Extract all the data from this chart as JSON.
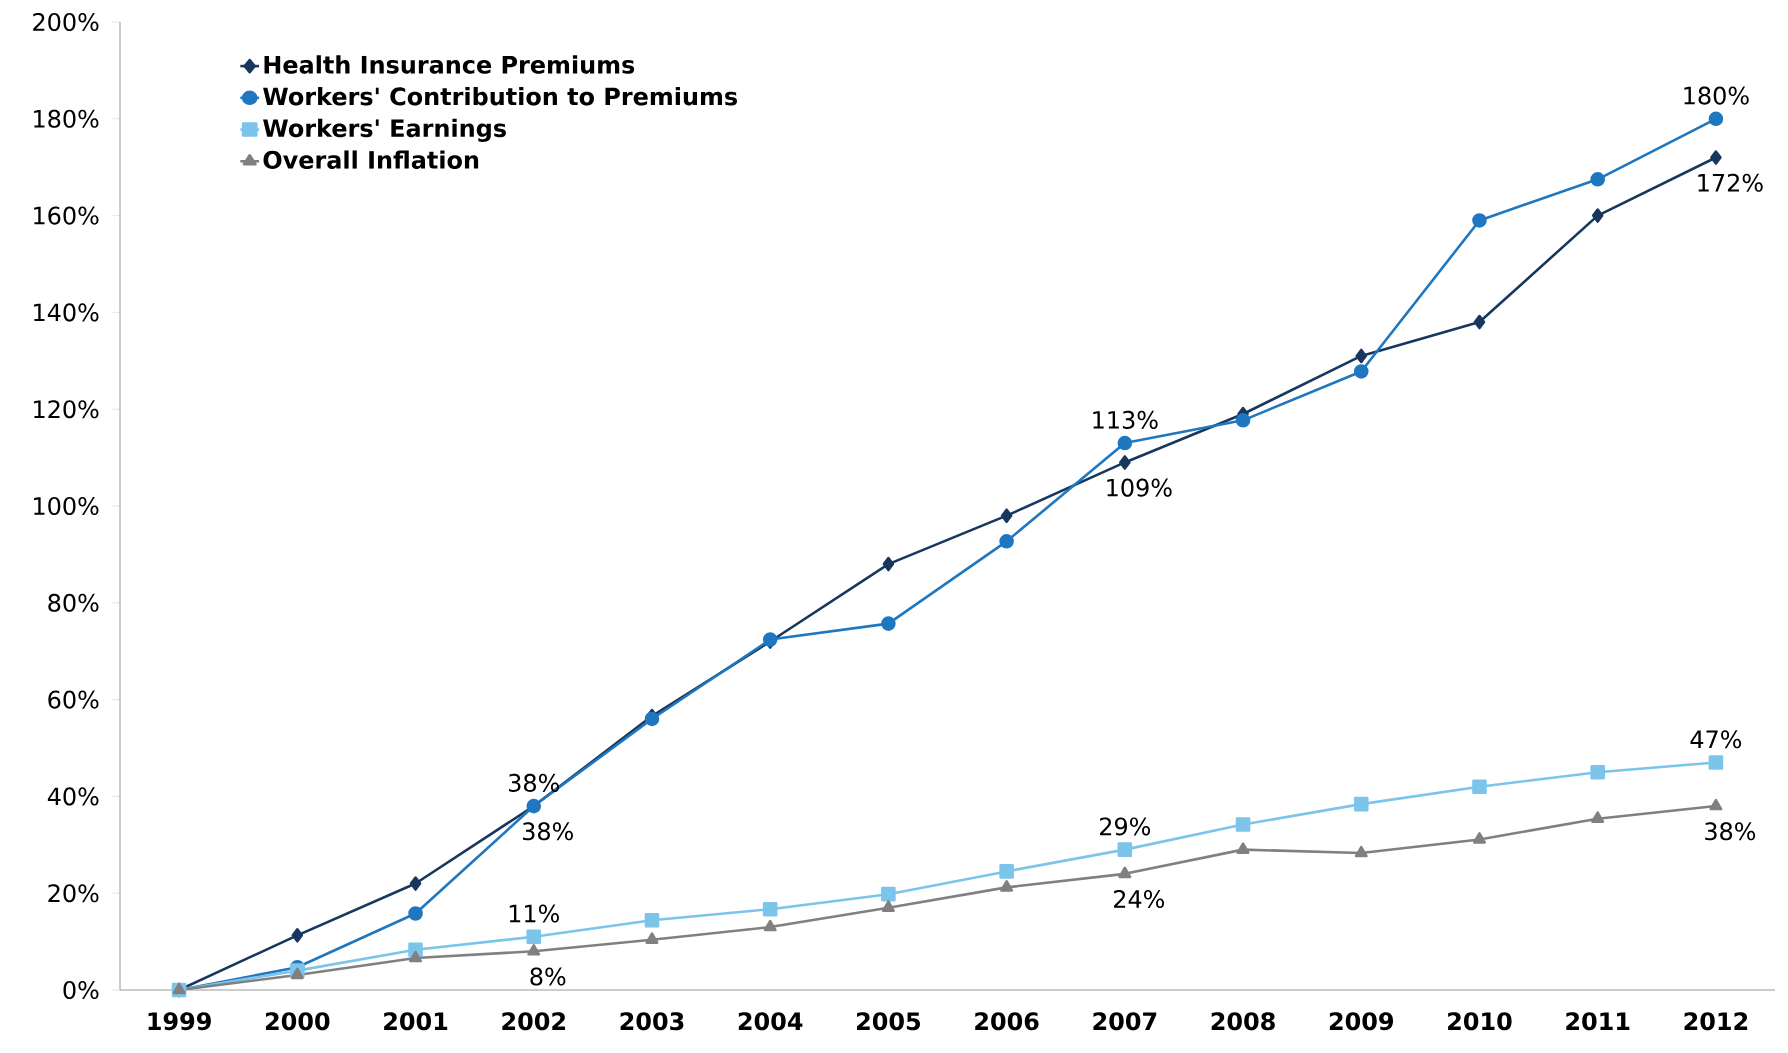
{
  "chart_data": {
    "type": "line",
    "categories": [
      "1999",
      "2000",
      "2001",
      "2002",
      "2003",
      "2004",
      "2005",
      "2006",
      "2007",
      "2008",
      "2009",
      "2010",
      "2011",
      "2012"
    ],
    "series": [
      {
        "name": "Health Insurance Premiums",
        "color": "#17375e",
        "marker": "diamond",
        "values": [
          0,
          11.3,
          22,
          38,
          56.6,
          72,
          88,
          98,
          109,
          119,
          131,
          138,
          160,
          172
        ],
        "value_labels": [
          null,
          null,
          null,
          "38%",
          null,
          null,
          null,
          null,
          "109%",
          null,
          null,
          null,
          null,
          "172%"
        ]
      },
      {
        "name": "Workers' Contribution to Premiums",
        "color": "#1f77c0",
        "marker": "circle",
        "values": [
          0,
          4.7,
          15.8,
          38,
          56,
          72.4,
          75.7,
          92.7,
          113,
          117.7,
          127.8,
          159,
          167.5,
          180
        ],
        "value_labels": [
          null,
          null,
          null,
          "38%",
          null,
          null,
          null,
          null,
          "113%",
          null,
          null,
          null,
          null,
          "180%"
        ]
      },
      {
        "name": "Workers' Earnings",
        "color": "#7cc4ea",
        "marker": "square",
        "values": [
          0,
          4,
          8.3,
          11,
          14.4,
          16.7,
          19.8,
          24.5,
          29,
          34.2,
          38.4,
          42,
          45,
          47
        ],
        "value_labels": [
          null,
          null,
          null,
          "11%",
          null,
          null,
          null,
          null,
          "29%",
          null,
          null,
          null,
          null,
          "47%"
        ]
      },
      {
        "name": "Overall Inflation",
        "color": "#808080",
        "marker": "triangle",
        "values": [
          0,
          3.1,
          6.6,
          8,
          10.4,
          13,
          17,
          21.2,
          24,
          29,
          28.3,
          31.1,
          35.4,
          38
        ],
        "value_labels": [
          null,
          null,
          null,
          "8%",
          null,
          null,
          null,
          null,
          "24%",
          null,
          null,
          null,
          null,
          "38%"
        ]
      }
    ],
    "ylim": [
      0,
      200
    ],
    "yticks": [
      {
        "value": 0,
        "label": "0%"
      },
      {
        "value": 20,
        "label": "20%"
      },
      {
        "value": 40,
        "label": "40%"
      },
      {
        "value": 60,
        "label": "60%"
      },
      {
        "value": 80,
        "label": "80%"
      },
      {
        "value": 100,
        "label": "100%"
      },
      {
        "value": 120,
        "label": "120%"
      },
      {
        "value": 140,
        "label": "140%"
      },
      {
        "value": 160,
        "label": "160%"
      },
      {
        "value": 180,
        "label": "180%"
      },
      {
        "value": 200,
        "label": "200%"
      }
    ],
    "legend": "top left",
    "grid": false,
    "line_style": "solid"
  }
}
